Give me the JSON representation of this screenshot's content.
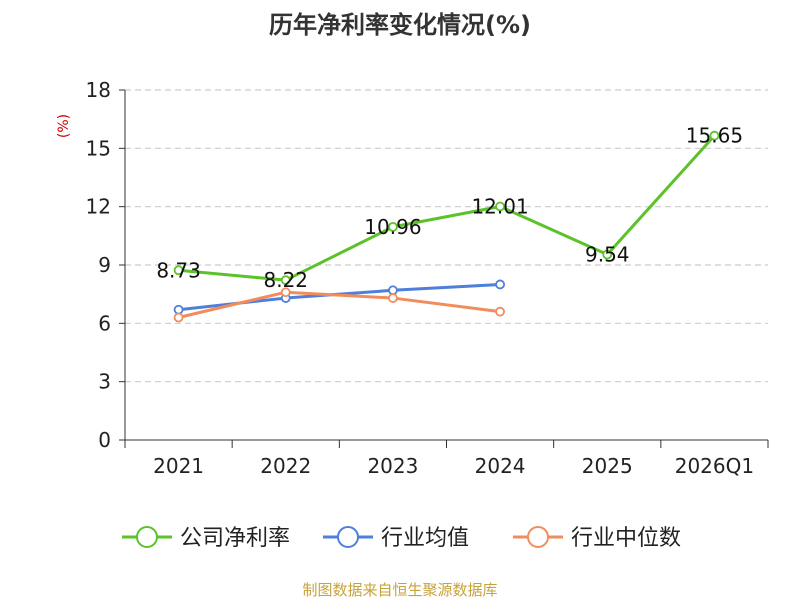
{
  "chart_data": {
    "type": "line",
    "title": "历年净利率变化情况(%)",
    "ylabel": "(%)",
    "xlabel": "",
    "categories": [
      "2021",
      "2022",
      "2023",
      "2024",
      "2025",
      "2026Q1"
    ],
    "ylim": [
      0,
      18
    ],
    "yticks": [
      0,
      3,
      6,
      9,
      12,
      15,
      18
    ],
    "grid": true,
    "legend_position": "bottom",
    "series": [
      {
        "name": "公司净利率",
        "color": "#5cc229",
        "values": [
          8.73,
          8.22,
          10.96,
          12.01,
          9.54,
          15.65
        ],
        "labels": [
          "8.73",
          "8.22",
          "10.96",
          "12.01",
          "9.54",
          "15.65"
        ]
      },
      {
        "name": "行业均值",
        "color": "#4d7fdb",
        "values": [
          6.7,
          7.3,
          7.7,
          8.0,
          null,
          null
        ],
        "labels": []
      },
      {
        "name": "行业中位数",
        "color": "#f28c5c",
        "values": [
          6.3,
          7.6,
          7.3,
          6.6,
          null,
          null
        ],
        "labels": []
      }
    ]
  },
  "source_text": "制图数据来自恒生聚源数据库",
  "colors": {
    "title": "#333333",
    "ylabel": "#cc0000",
    "grid": "#cccccc",
    "axis": "#333333",
    "source": "#c8a23a"
  }
}
